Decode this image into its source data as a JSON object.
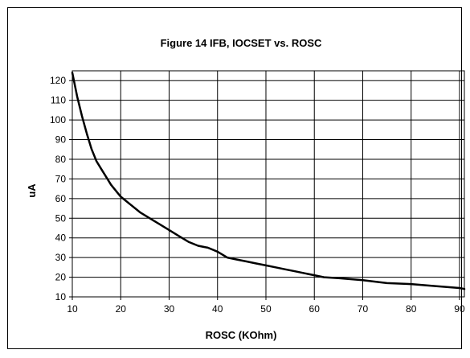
{
  "chart_data": {
    "type": "line",
    "title": "Figure 14 IFB, IOCSET vs. ROSC",
    "xlabel": "ROSC (KOhm)",
    "ylabel": "uA",
    "xlim": [
      10,
      91
    ],
    "ylim": [
      10,
      125
    ],
    "x_ticks": [
      10,
      20,
      30,
      40,
      50,
      60,
      70,
      80,
      90
    ],
    "y_ticks": [
      10,
      20,
      30,
      40,
      50,
      60,
      70,
      80,
      90,
      100,
      110,
      120
    ],
    "grid": true,
    "legend": "none",
    "line_color": "#000000",
    "series": [
      {
        "x": [
          10,
          11,
          12,
          13,
          14,
          15,
          16,
          18,
          20,
          22,
          24,
          26,
          28,
          30,
          32,
          34,
          36,
          38,
          40,
          42,
          44,
          46,
          48,
          50,
          52,
          54,
          56,
          58,
          60,
          62,
          65,
          70,
          75,
          80,
          85,
          90,
          91
        ],
        "y": [
          124,
          112,
          102,
          93,
          85,
          79,
          75,
          67,
          61,
          57,
          53,
          50,
          47,
          44,
          41,
          38,
          36,
          35,
          33,
          30,
          29,
          28,
          27,
          26,
          25,
          24,
          23,
          22,
          21,
          20,
          19.5,
          18.5,
          17,
          16.5,
          15.5,
          14.5,
          14
        ]
      }
    ]
  }
}
